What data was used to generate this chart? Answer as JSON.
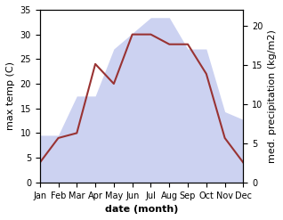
{
  "months": [
    "Jan",
    "Feb",
    "Mar",
    "Apr",
    "May",
    "Jun",
    "Jul",
    "Aug",
    "Sep",
    "Oct",
    "Nov",
    "Dec"
  ],
  "temp_values": [
    4,
    9,
    10,
    24,
    20,
    30,
    30,
    28,
    28,
    22,
    9,
    4
  ],
  "precip_values": [
    6,
    6,
    11,
    11,
    17,
    19,
    21,
    21,
    17,
    17,
    9,
    8
  ],
  "temp_color": "#993333",
  "precip_color": "#aab4e8",
  "precip_fill_alpha": 0.6,
  "temp_ylim": [
    0,
    35
  ],
  "precip_ylim": [
    0,
    22
  ],
  "temp_ylabel": "max temp (C)",
  "precip_ylabel": "med. precipitation (kg/m2)",
  "xlabel": "date (month)",
  "temp_yticks": [
    0,
    5,
    10,
    15,
    20,
    25,
    30,
    35
  ],
  "precip_yticks": [
    0,
    5,
    10,
    15,
    20
  ],
  "background_color": "#ffffff",
  "label_fontsize": 8,
  "tick_fontsize": 7
}
